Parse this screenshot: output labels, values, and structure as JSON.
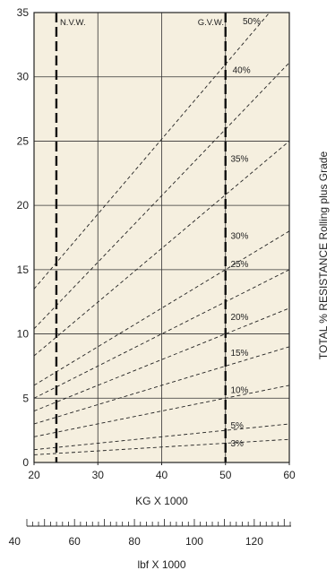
{
  "chart_data": {
    "type": "line",
    "xlabel": "KG X 1000",
    "ylabel": "",
    "right_label": "TOTAL % RESISTANCE Rolling plus Grade",
    "xlim": [
      20,
      60
    ],
    "ylim": [
      0,
      35
    ],
    "x_ticks": [
      "20",
      "30",
      "40",
      "50",
      "60"
    ],
    "y_ticks": [
      "0",
      "5",
      "10",
      "15",
      "20",
      "25",
      "30",
      "35"
    ],
    "plot_background": "#f5efdf",
    "grid": true,
    "markers": [
      {
        "label": "N.V.W.",
        "x": 23.5
      },
      {
        "label": "G.V.W.",
        "x": 50
      }
    ],
    "series": [
      {
        "name": "3%",
        "points": [
          [
            20,
            0.6
          ],
          [
            60,
            1.8
          ]
        ]
      },
      {
        "name": "5%",
        "points": [
          [
            20,
            1.0
          ],
          [
            60,
            3.0
          ]
        ]
      },
      {
        "name": "10%",
        "points": [
          [
            20,
            2.0
          ],
          [
            60,
            6.0
          ]
        ]
      },
      {
        "name": "15%",
        "points": [
          [
            20,
            3.0
          ],
          [
            60,
            9.0
          ]
        ]
      },
      {
        "name": "20%",
        "points": [
          [
            20,
            4.0
          ],
          [
            60,
            12.0
          ]
        ]
      },
      {
        "name": "25%",
        "points": [
          [
            20,
            5.0
          ],
          [
            60,
            15.0
          ]
        ]
      },
      {
        "name": "30%",
        "points": [
          [
            20,
            6.0
          ],
          [
            60,
            18.0
          ]
        ]
      },
      {
        "name": "35%",
        "points": [
          [
            20,
            8.3
          ],
          [
            60,
            25.0
          ]
        ]
      },
      {
        "name": "40%",
        "points": [
          [
            20,
            10.4
          ],
          [
            60,
            31.1
          ]
        ]
      },
      {
        "name": "50%",
        "points": [
          [
            20,
            13.5
          ],
          [
            56.9,
            35.0
          ]
        ]
      }
    ],
    "secondary_axis": {
      "label": "lbf X 1000",
      "range": [
        44.1,
        132.3
      ],
      "ticks": [
        "40",
        "60",
        "80",
        "100",
        "120"
      ],
      "tick_values": [
        40,
        60,
        80,
        100,
        120
      ],
      "minor_step": 2
    }
  }
}
